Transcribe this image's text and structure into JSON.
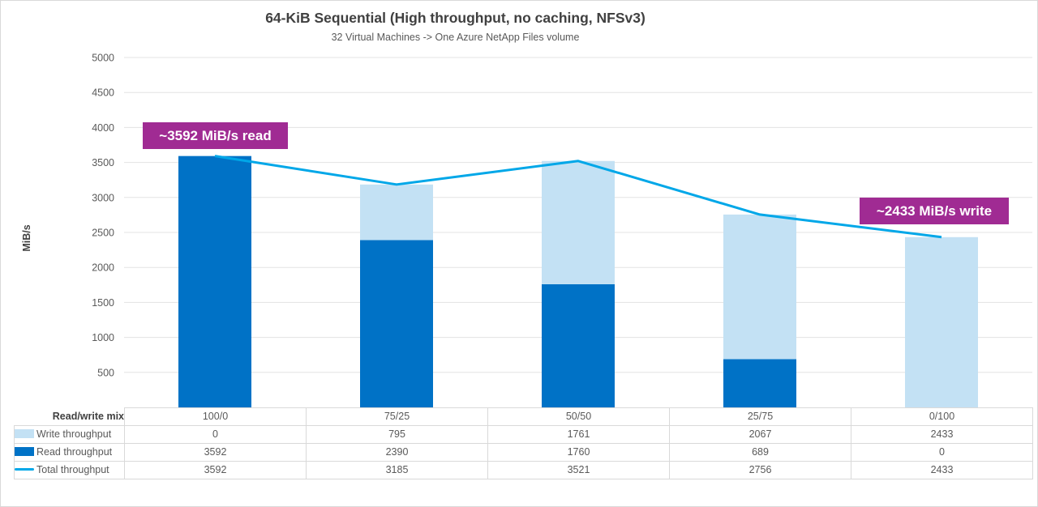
{
  "colors": {
    "read_bar": "#0072C6",
    "write_bar": "#C3E1F4",
    "total_line": "#00A7E8",
    "annotation_bg": "#A02B93",
    "grid": "#E3E3E3",
    "table_border": "#D9D9D9",
    "text_gray": "#595959",
    "title_gray": "#404040"
  },
  "annotations": [
    {
      "id": "read",
      "label": "~3592 MiB/s read"
    },
    {
      "id": "write",
      "label": "~2433 MiB/s write"
    }
  ],
  "chart_data": {
    "type": "bar",
    "subtype": "stacked-bars-with-line-overlay",
    "title": "64-KiB Sequential (High throughput, no caching, NFSv3)",
    "subtitle": "32 Virtual Machines -> One Azure NetApp Files volume",
    "xlabel": "",
    "ylabel": "MiB/s",
    "category_header": "Read/write mix",
    "categories": [
      "100/0",
      "75/25",
      "50/50",
      "25/75",
      "0/100"
    ],
    "series": [
      {
        "name": "Write throughput",
        "kind": "bar",
        "stack_level": "top",
        "color": "#C3E1F4",
        "values": [
          0,
          795,
          1761,
          2067,
          2433
        ]
      },
      {
        "name": "Read throughput",
        "kind": "bar",
        "stack_level": "bottom",
        "color": "#0072C6",
        "values": [
          3592,
          2390,
          1760,
          689,
          0
        ]
      },
      {
        "name": "Total throughput",
        "kind": "line",
        "stack_level": "none",
        "color": "#00A7E8",
        "values": [
          3592,
          3185,
          3521,
          2756,
          2433
        ]
      }
    ],
    "ylim": [
      0,
      5000
    ],
    "y_ticks": [
      500,
      1000,
      1500,
      2000,
      2500,
      3000,
      3500,
      4000,
      4500,
      5000
    ],
    "grid": true,
    "legend_position": "data-table-left",
    "data_table_shown": true
  }
}
